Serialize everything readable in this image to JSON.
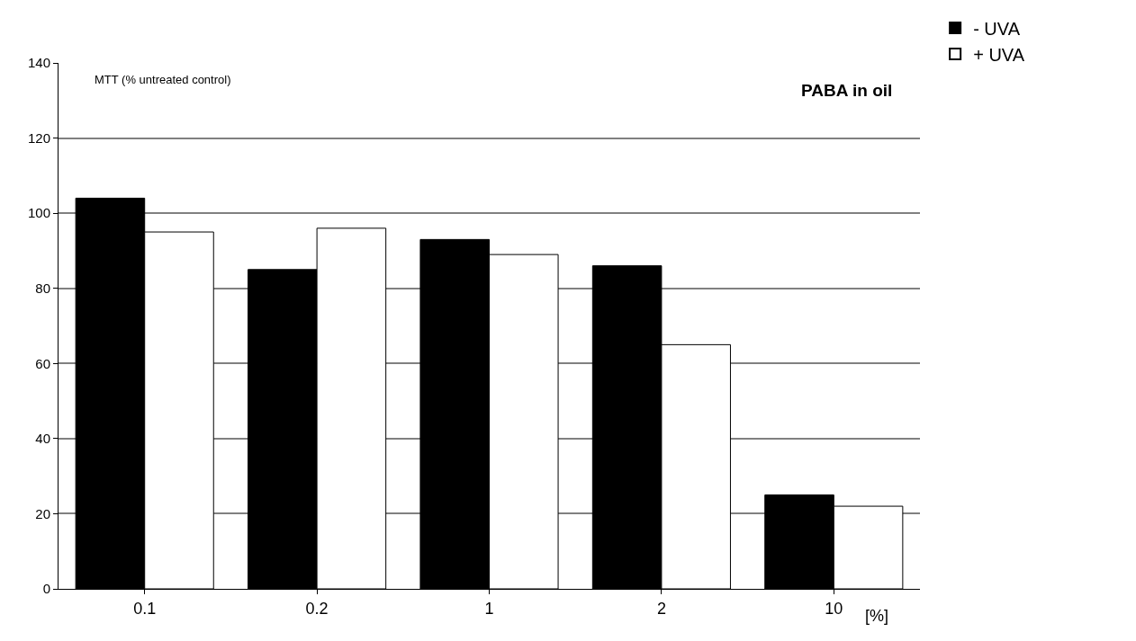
{
  "chart_data": {
    "type": "bar",
    "title": "PABA in oil",
    "ylabel": "MTT (% untreated control)",
    "xlabel": "[%]",
    "categories": [
      "0.1",
      "0.2",
      "1",
      "2",
      "10"
    ],
    "series": [
      {
        "name": "- UVA",
        "color": "#000000",
        "values": [
          104,
          85,
          93,
          86,
          25
        ]
      },
      {
        "name": "+ UVA",
        "color": "#ffffff",
        "values": [
          95,
          96,
          89,
          65,
          22
        ]
      }
    ],
    "ylim": [
      0,
      140
    ],
    "yticks": [
      0,
      20,
      40,
      60,
      80,
      100,
      120,
      140
    ],
    "grid": "y",
    "legend": "top right"
  }
}
